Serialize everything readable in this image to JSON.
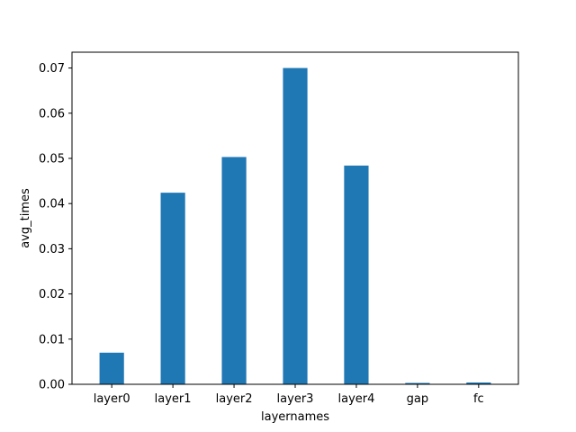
{
  "chart_data": {
    "type": "bar",
    "title": "",
    "xlabel": "layernames",
    "ylabel": "avg_times",
    "categories": [
      "layer0",
      "layer1",
      "layer2",
      "layer3",
      "layer4",
      "gap",
      "fc"
    ],
    "values": [
      0.007,
      0.0424,
      0.0503,
      0.07,
      0.0484,
      0.0003,
      0.0004
    ],
    "ylim": [
      0,
      0.0735
    ],
    "yticks": [
      0.0,
      0.01,
      0.02,
      0.03,
      0.04,
      0.05,
      0.06,
      0.07
    ],
    "ytick_labels": [
      "0.00",
      "0.01",
      "0.02",
      "0.03",
      "0.04",
      "0.05",
      "0.06",
      "0.07"
    ],
    "bar_color": "#1f77b4",
    "grid": false,
    "legend": "none"
  }
}
